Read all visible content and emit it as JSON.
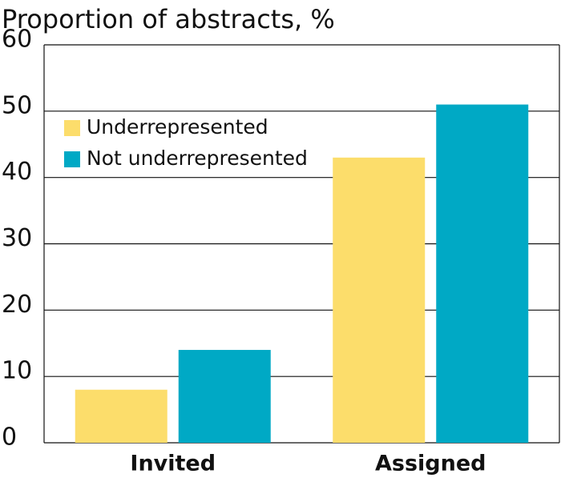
{
  "chart_data": {
    "type": "bar",
    "title": "Proportion of abstracts, %",
    "categories": [
      "Invited",
      "Assigned"
    ],
    "series": [
      {
        "name": "Underrepresented",
        "color": "#fcdd6b",
        "values": [
          8,
          43
        ]
      },
      {
        "name": "Not underrepresented",
        "color": "#00a9c5",
        "values": [
          14,
          51
        ]
      }
    ],
    "ylim": [
      0,
      60
    ],
    "yticks": [
      0,
      10,
      20,
      30,
      40,
      50,
      60
    ],
    "grid": true,
    "legend": "upper-left"
  }
}
